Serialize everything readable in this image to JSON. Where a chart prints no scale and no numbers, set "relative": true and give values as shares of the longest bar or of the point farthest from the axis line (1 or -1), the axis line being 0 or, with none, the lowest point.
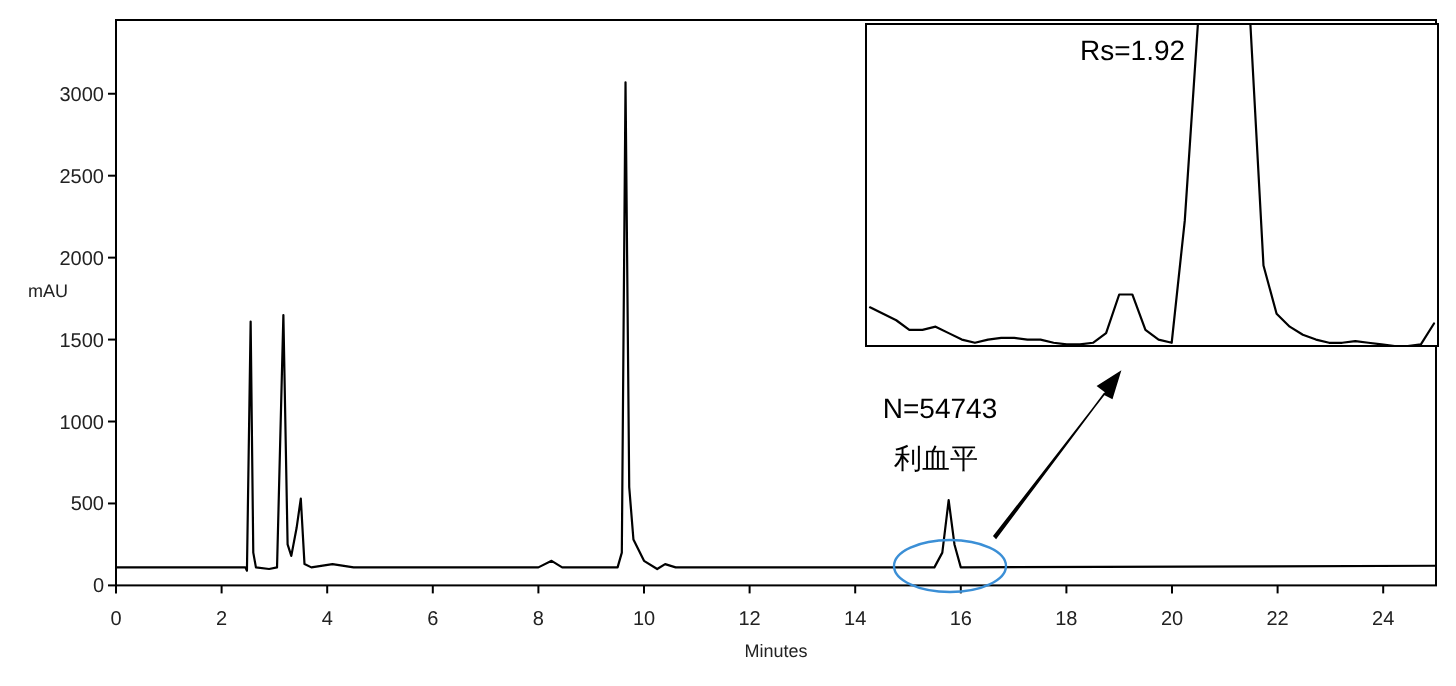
{
  "chart_data": [
    {
      "type": "line",
      "xlabel": "Minutes",
      "ylabel": "mAU",
      "xlim": [
        0,
        25
      ],
      "ylim": [
        0,
        3450
      ],
      "xticks": [
        0,
        2,
        4,
        6,
        8,
        10,
        12,
        14,
        16,
        18,
        20,
        22,
        24
      ],
      "yticks": [
        0,
        500,
        1000,
        1500,
        2000,
        2500,
        3000
      ],
      "x": [
        0,
        2.45,
        2.48,
        2.55,
        2.6,
        2.65,
        2.9,
        3.05,
        3.17,
        3.25,
        3.32,
        3.42,
        3.5,
        3.57,
        3.7,
        4.1,
        4.5,
        8.0,
        8.25,
        8.45,
        9.5,
        9.58,
        9.65,
        9.72,
        9.8,
        10.0,
        10.25,
        10.4,
        10.6,
        15.5,
        15.65,
        15.77,
        15.88,
        16.0,
        25
      ],
      "series": [
        {
          "color": "#000000",
          "values": [
            110,
            110,
            90,
            1610,
            200,
            110,
            100,
            110,
            1650,
            250,
            180,
            350,
            530,
            130,
            110,
            130,
            110,
            110,
            150,
            110,
            110,
            200,
            3070,
            600,
            280,
            150,
            100,
            130,
            110,
            110,
            200,
            520,
            250,
            110,
            120
          ]
        }
      ],
      "annotations": [
        "N=54743",
        "利血平"
      ],
      "marker": "none"
    },
    {
      "type": "line",
      "relative": true,
      "categories": [
        null,
        null,
        null,
        null,
        null,
        null,
        null,
        null,
        null,
        null,
        null,
        null,
        null,
        null,
        null,
        null,
        null,
        null,
        null,
        null,
        null,
        null,
        null,
        null,
        null,
        null,
        null,
        null,
        null,
        null,
        null,
        null,
        null,
        null,
        null,
        null,
        null,
        null,
        null,
        null,
        null,
        null,
        null,
        null
      ],
      "series": [
        {
          "color": "#000000",
          "values": [
            0.12,
            0.1,
            0.08,
            0.05,
            0.05,
            0.06,
            0.04,
            0.02,
            0.01,
            0.02,
            0.025,
            0.025,
            0.02,
            0.02,
            0.01,
            0.005,
            0.005,
            0.01,
            0.04,
            0.16,
            0.16,
            0.05,
            0.02,
            0.01,
            0.39,
            1,
            1,
            1,
            1,
            1,
            0.25,
            0.1,
            0.06,
            0.035,
            0.02,
            0.01,
            0.01,
            0.015,
            0.01,
            0.005,
            0,
            0,
            0.005,
            0.07
          ]
        }
      ],
      "annotations": [
        "Rs=1.92"
      ],
      "marker": "none"
    }
  ]
}
